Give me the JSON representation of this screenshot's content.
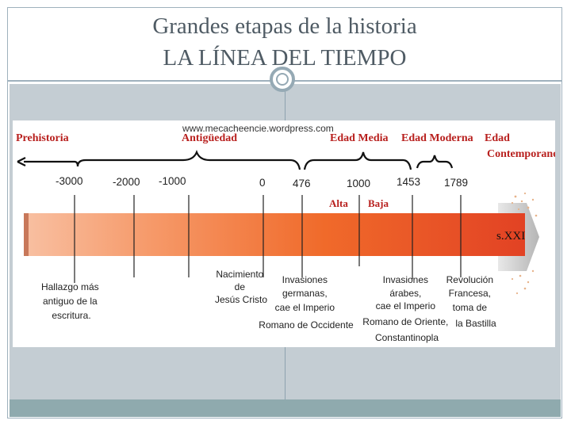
{
  "slide": {
    "title_line1": "Grandes etapas de la historia",
    "title_line2": "LA LÍNEA DEL TIEMPO"
  },
  "timeline": {
    "watermark": "www.mecacheencie.wordpress.com",
    "eras": {
      "prehistoria": "Prehistoria",
      "antiguedad": "Antigüedad",
      "edad_media": "Edad Media",
      "edad_moderna": "Edad Moderna",
      "edad_contemporanea_1": "Edad",
      "edad_contemporanea_2": "Contemporanea"
    },
    "years": {
      "y1": "-3000",
      "y2": "-2000",
      "y3": "-1000",
      "y4": "0",
      "y5": "476",
      "y6": "1000",
      "y7": "1453",
      "y8": "1789"
    },
    "sub_periods": {
      "alta": "Alta",
      "baja": "Baja"
    },
    "end_label": "s.XXI",
    "events": {
      "escritura": [
        "Hallazgo más",
        "antiguo de la",
        "escritura."
      ],
      "nacimiento": [
        "Nacimiento",
        "de",
        "Jesús Cristo"
      ],
      "invasiones_germanas": [
        "Invasiones",
        "germanas,",
        "cae el Imperio",
        "Romano de Occidente"
      ],
      "invasiones_arabes": [
        "Invasiones",
        "árabes,",
        "cae el Imperio",
        "Romano de Oriente,",
        "Constantinopla"
      ],
      "revolucion": [
        "Revolución",
        "Francesa,",
        "toma de",
        "la Bastilla"
      ]
    }
  },
  "colors": {
    "title": "#4f5b64",
    "accent_gray": "#c4cdd3",
    "era_red": "#b8201e",
    "band_start": "#f8c0a2",
    "band_end": "#e24224"
  }
}
